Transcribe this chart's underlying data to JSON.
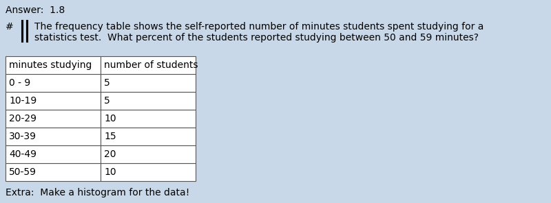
{
  "answer_label": "Answer:",
  "answer_value": "1.8",
  "question_text_line1": "The frequency table shows the self-reported number of minutes students spent studying for a",
  "question_text_line2": "statistics test.  What percent of the students reported studying between 50 and 59 minutes?",
  "col1_header": "minutes studying",
  "col2_header": "number of students",
  "rows": [
    [
      "0 - 9",
      "5"
    ],
    [
      "10-19",
      "5"
    ],
    [
      "20-29",
      "10"
    ],
    [
      "30-39",
      "15"
    ],
    [
      "40-49",
      "20"
    ],
    [
      "50-59",
      "10"
    ]
  ],
  "extra_text": "Extra:  Make a histogram for the data!",
  "bg_color": "#c8d8e8",
  "table_bg": "#ffffff",
  "text_color": "#000000",
  "table_border_color": "#555555",
  "answer_fontsize": 10,
  "question_fontsize": 10,
  "table_fontsize": 10,
  "extra_fontsize": 10,
  "fig_width": 8.0,
  "fig_height": 2.96,
  "dpi": 100
}
